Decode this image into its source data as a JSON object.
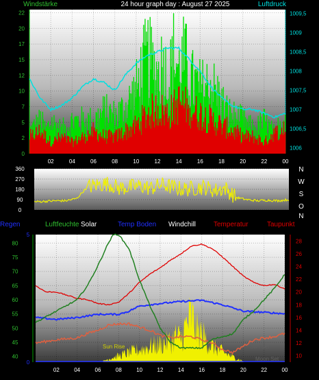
{
  "title": "24 hour graph day : August 27 2025",
  "hours": [
    "02",
    "04",
    "06",
    "08",
    "10",
    "12",
    "14",
    "16",
    "18",
    "20",
    "22",
    "00"
  ],
  "colors": {
    "bg": "#000000",
    "green": "#00e000",
    "red": "#e00000",
    "cyan": "#00e0e0",
    "yellow": "#f0f000",
    "blue": "#2030ff",
    "darkgreen": "#208020",
    "white": "#ffffff",
    "orange": "#e06040",
    "legend_green": "#30c030",
    "gold": "#e0c000"
  },
  "chart_data": [
    {
      "type": "line",
      "left_label": "Windstärke",
      "right_label": "Luftdruck",
      "y_left_ticks": [
        "0",
        "2",
        "5",
        "7",
        "10",
        "12",
        "15",
        "17",
        "20",
        "22"
      ],
      "y_left_range": [
        0,
        23
      ],
      "y_right_ticks": [
        "1006",
        "1006,5",
        "1007",
        "1007,5",
        "1008",
        "1008,5",
        "1009",
        "1009,5"
      ],
      "y_right_range": [
        1005.85,
        1009.6
      ],
      "x_range": [
        0,
        24
      ],
      "series": [
        {
          "role": "gust",
          "color": "green",
          "x": [
            0,
            1,
            1.5,
            2,
            3,
            4,
            5,
            6,
            7,
            8,
            9,
            10,
            10.5,
            11,
            11.5,
            12,
            12.5,
            13,
            13.5,
            14,
            14.5,
            15,
            16,
            17,
            18,
            18.5,
            19,
            20,
            21,
            22,
            23,
            23.5,
            24
          ],
          "y": [
            5,
            7,
            5,
            7,
            5,
            7,
            7,
            7,
            9,
            8,
            10,
            14,
            18,
            21,
            19,
            17,
            20,
            15,
            22,
            18,
            21,
            16,
            14,
            15,
            11,
            9,
            8,
            7,
            5,
            7,
            4,
            7,
            9
          ]
        },
        {
          "role": "average",
          "color": "red",
          "x": [
            0,
            1,
            2,
            3,
            4,
            5,
            6,
            7,
            8,
            9,
            10,
            11,
            12,
            13,
            14,
            15,
            16,
            17,
            18,
            19,
            20,
            21,
            22,
            23,
            24
          ],
          "y": [
            3,
            4,
            2,
            3,
            2,
            3,
            4,
            3,
            3,
            4,
            5,
            7,
            8,
            7,
            9,
            8,
            7,
            6,
            5,
            4,
            3,
            3,
            2,
            4,
            5
          ]
        },
        {
          "role": "pressure",
          "color": "cyan",
          "x": [
            0,
            1,
            2,
            3,
            4,
            5,
            6,
            7,
            8,
            9,
            10,
            11,
            12,
            13,
            14,
            15,
            16,
            17,
            18,
            19,
            20,
            21,
            22,
            23,
            24
          ],
          "y": [
            1007.8,
            1007.3,
            1007.0,
            1007.1,
            1007.3,
            1007.6,
            1007.8,
            1007.7,
            1007.5,
            1007.9,
            1008.2,
            1008.4,
            1008.5,
            1008.6,
            1008.6,
            1008.3,
            1008.0,
            1007.6,
            1007.3,
            1007.1,
            1007.0,
            1007.0,
            1006.9,
            1006.8,
            1006.9
          ]
        }
      ]
    },
    {
      "type": "scatter",
      "y_ticks": [
        "0",
        "90",
        "180",
        "270",
        "360"
      ],
      "y_range": [
        0,
        360
      ],
      "dir_labels": [
        "N",
        "W",
        "S",
        "O",
        "N"
      ],
      "series": [
        {
          "role": "wind_direction",
          "color": "yellow",
          "x": [
            0,
            1,
            2,
            3,
            4,
            4.5,
            5,
            6,
            7,
            8,
            9,
            10,
            11,
            12,
            13,
            14,
            15,
            16,
            17,
            18,
            19,
            20,
            21,
            22,
            23,
            24
          ],
          "y": [
            70,
            75,
            80,
            80,
            100,
            150,
            200,
            220,
            230,
            190,
            200,
            210,
            190,
            220,
            200,
            180,
            190,
            200,
            170,
            190,
            110,
            90,
            80,
            85,
            80,
            90
          ]
        }
      ]
    },
    {
      "type": "line",
      "legend": [
        "Regen",
        "Luftfeuchte",
        "Solar",
        "Temp Boden",
        "Windchill",
        "Temperatur",
        "Taupunkt"
      ],
      "y_left_ticks": [
        "40",
        "45",
        "50",
        "55",
        "60",
        "65",
        "70",
        "75",
        "80"
      ],
      "y_left_range": [
        38,
        83
      ],
      "y_rain_ticks": [
        "0",
        "5"
      ],
      "y_right_ticks": [
        "10",
        "12",
        "14",
        "16",
        "18",
        "20",
        "22",
        "24",
        "26",
        "28"
      ],
      "y_right_range": [
        9,
        29
      ],
      "annotations": [
        "Sun Rise",
        "Sun Set",
        "Moon Set"
      ],
      "series": [
        {
          "role": "humidity",
          "color": "darkgreen",
          "x": [
            0,
            2,
            3,
            4,
            5,
            6,
            7,
            7.5,
            8,
            9,
            10,
            11,
            12,
            13,
            14,
            15,
            16,
            17,
            18,
            19,
            20,
            21,
            22,
            23,
            24
          ],
          "y": [
            52,
            56,
            58,
            60,
            65,
            72,
            80,
            83,
            83,
            78,
            67,
            58,
            50,
            45,
            43,
            43,
            43,
            46,
            47,
            48,
            53,
            56,
            60,
            64,
            69
          ]
        },
        {
          "role": "temperature",
          "color": "red",
          "x": [
            0,
            1,
            2,
            3,
            4,
            5,
            6,
            7,
            8,
            9,
            10,
            11,
            12,
            13,
            14,
            15,
            16,
            17,
            18,
            19,
            20,
            21,
            22,
            23,
            24
          ],
          "y": [
            21,
            20,
            20,
            19.5,
            19,
            18.8,
            18.2,
            18,
            18.4,
            19.8,
            21.5,
            22.8,
            23.8,
            25,
            26,
            27.2,
            27.5,
            26.8,
            25.5,
            24,
            22.5,
            21.5,
            21,
            21.2,
            20.5
          ]
        },
        {
          "role": "soil_temp",
          "color": "blue",
          "x": [
            0,
            2,
            4,
            6,
            8,
            9,
            10,
            12,
            14,
            16,
            18,
            20,
            22,
            24
          ],
          "y": [
            16,
            15.7,
            16,
            16.5,
            16.5,
            17,
            17.8,
            18.2,
            18.5,
            18.7,
            18,
            17,
            16.8,
            16.6
          ]
        },
        {
          "role": "dewpoint",
          "color": "orange",
          "x": [
            0,
            2,
            4,
            5,
            6,
            7,
            8,
            9,
            10,
            11,
            12,
            13,
            14,
            15,
            16,
            17,
            18,
            19,
            20,
            21,
            22,
            23,
            24
          ],
          "y": [
            12,
            12.5,
            12.8,
            13.5,
            14,
            14.8,
            15,
            15,
            14.5,
            14,
            13.2,
            12.8,
            13,
            13,
            12.5,
            12,
            11,
            10.5,
            11.5,
            12.5,
            12.8,
            13,
            13.5
          ]
        },
        {
          "role": "solar",
          "color": "yellow",
          "x": [
            6.5,
            7,
            8,
            9,
            10,
            11,
            12,
            13,
            13.5,
            14,
            14.5,
            15,
            15.5,
            16,
            16.5,
            17,
            18,
            19,
            19.5,
            20
          ],
          "y": [
            0.1,
            0.3,
            0.6,
            0.9,
            1.2,
            1.5,
            1.7,
            2.0,
            2.5,
            2.2,
            3.5,
            4.5,
            3.0,
            2.7,
            2.0,
            1.5,
            1.0,
            0.5,
            0.3,
            0.1
          ]
        }
      ]
    }
  ]
}
